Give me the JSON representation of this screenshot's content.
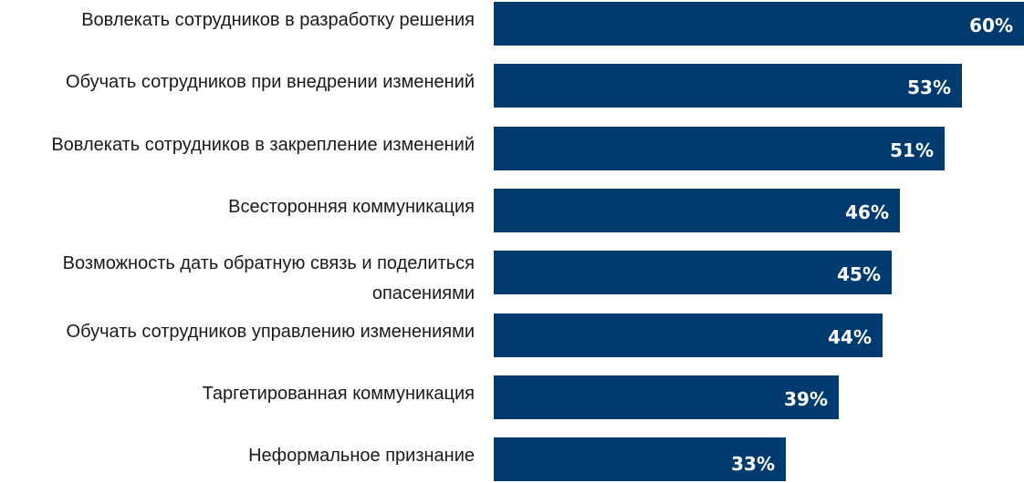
{
  "chart_data": {
    "type": "bar",
    "orientation": "horizontal",
    "categories": [
      "Вовлекать сотрудников в разработку решения",
      "Обучать сотрудников при внедрении изменений",
      "Вовлекать сотрудников в закрепление изменений",
      "Всесторонняя коммуникация",
      "Возможность дать обратную связь и поделиться опасениями",
      "Обучать сотрудников управлению изменениями",
      "Таргетированная коммуникация",
      "Неформальное признание"
    ],
    "values": [
      60,
      53,
      51,
      46,
      45,
      44,
      39,
      33
    ],
    "value_labels": [
      "60%",
      "53%",
      "51%",
      "46%",
      "45%",
      "44%",
      "39%",
      "33%"
    ],
    "unit": "%",
    "xlim": [
      0,
      60
    ],
    "grid": false,
    "bar_color": "#003b6f",
    "value_label_color": "#ffffff"
  }
}
